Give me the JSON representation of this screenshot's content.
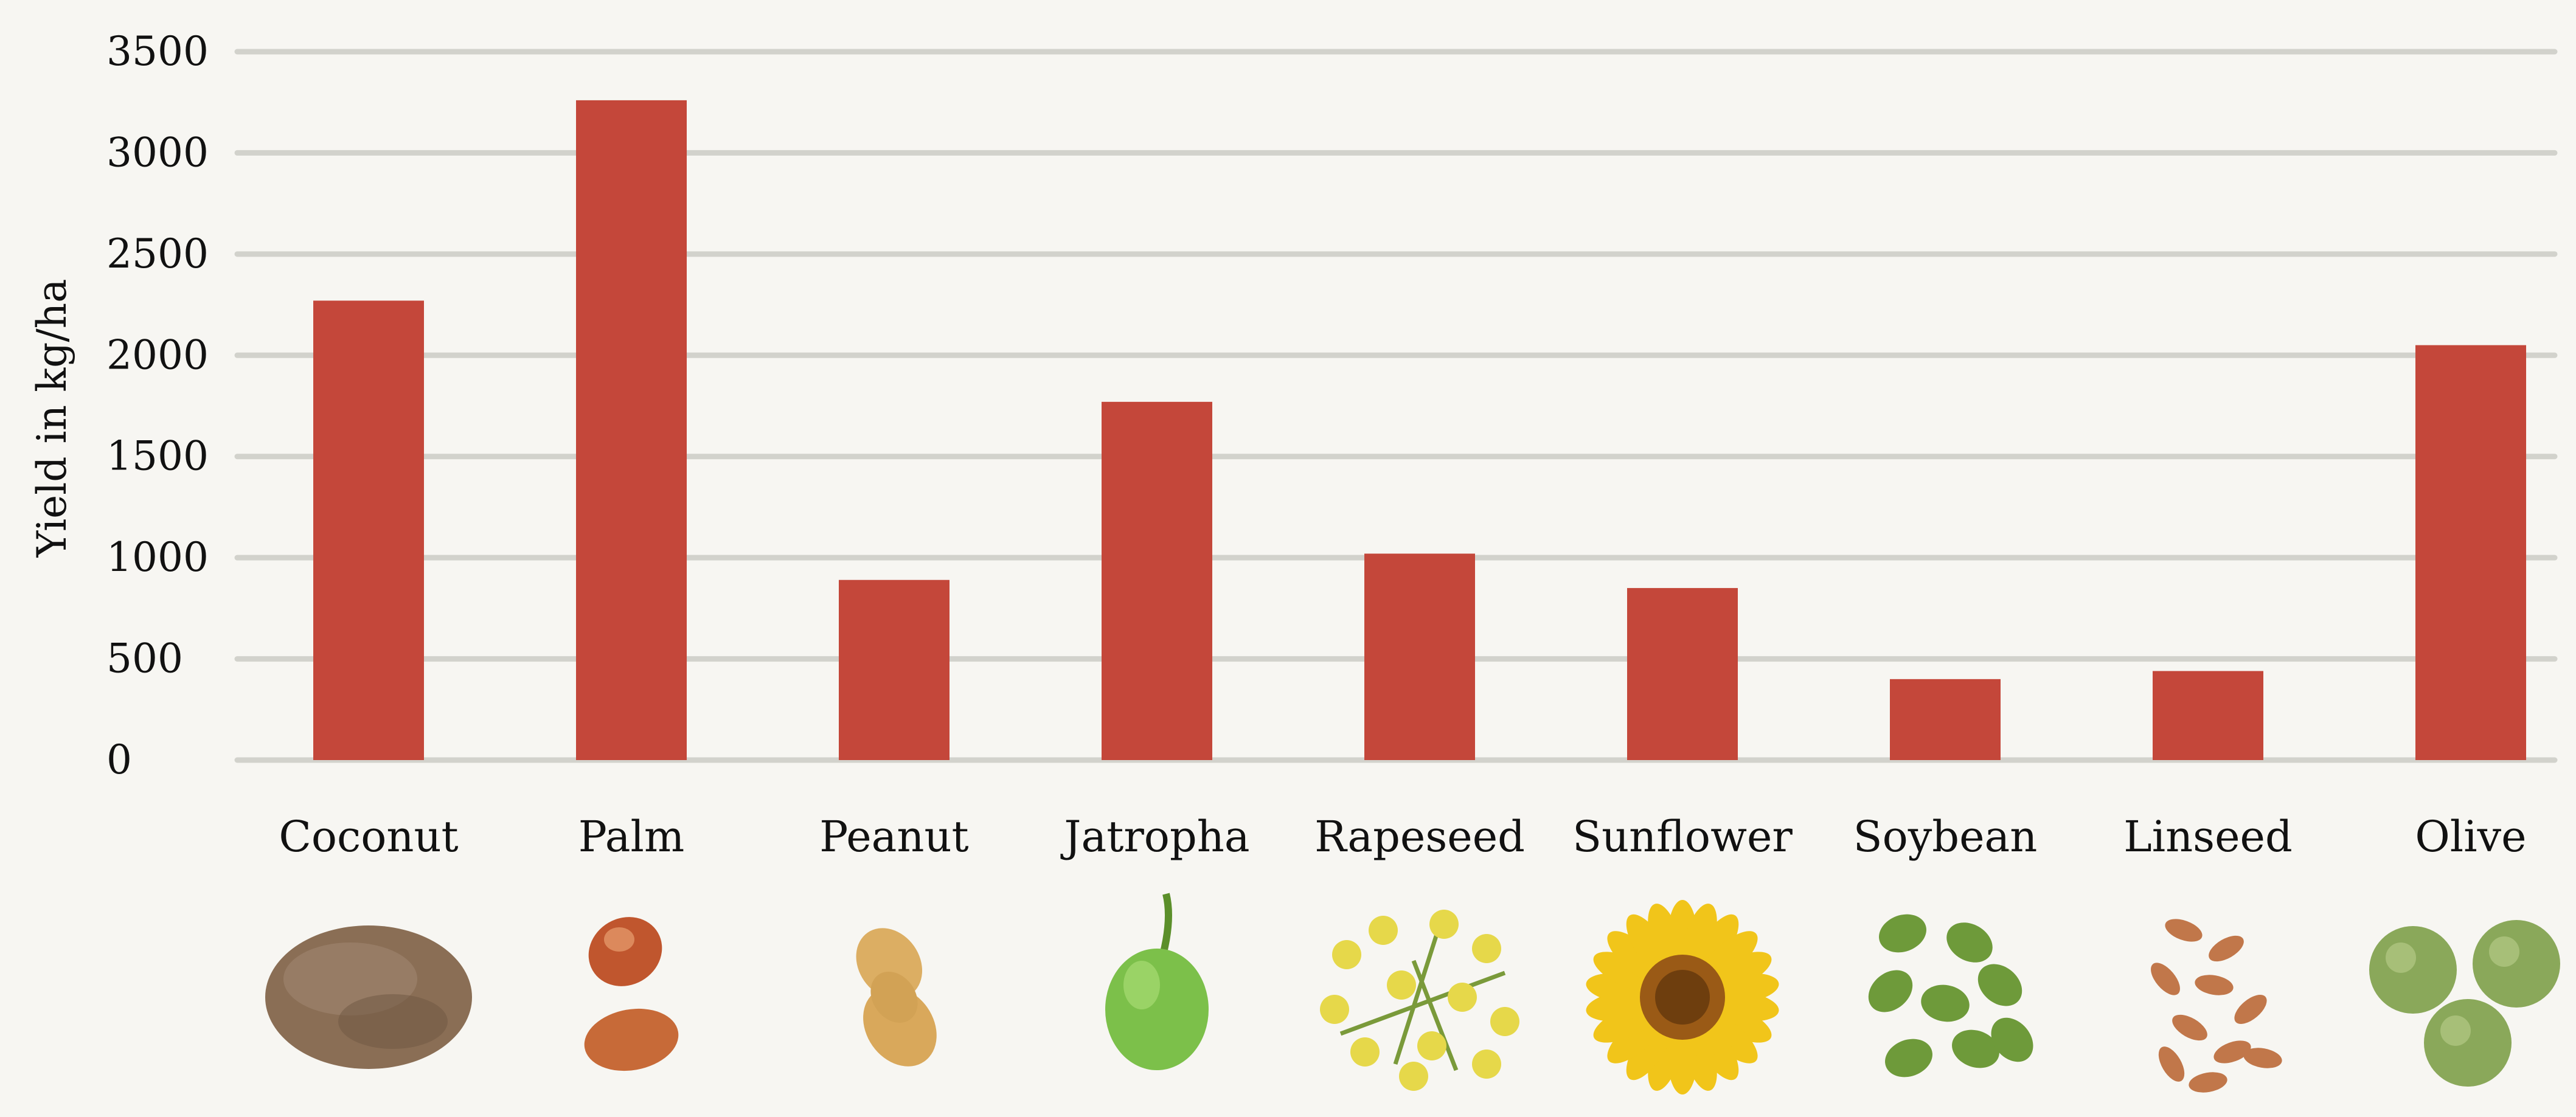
{
  "chart_data": {
    "type": "bar",
    "ylabel": "Yield in kg/ha",
    "ylim": [
      0,
      3500
    ],
    "yticks": [
      0,
      500,
      1000,
      1500,
      2000,
      2500,
      3000,
      3500
    ],
    "grid": true,
    "categories": [
      "Coconut",
      "Palm",
      "Peanut",
      "Jatropha",
      "Rapeseed",
      "Sunflower",
      "Soybean",
      "Linseed",
      "Olive"
    ],
    "values": [
      2270,
      3260,
      890,
      1770,
      1020,
      850,
      400,
      440,
      2050
    ],
    "colors": {
      "bar": "#c4473a",
      "grid": "#d2d2cc",
      "text": "#111111",
      "background": "#f7f6f2"
    },
    "icons": [
      "coconut-illustration",
      "palm-fruit-illustration",
      "peanut-illustration",
      "jatropha-fruit-illustration",
      "rapeseed-flower-illustration",
      "sunflower-illustration",
      "soybean-illustration",
      "linseed-illustration",
      "olive-illustration"
    ]
  }
}
